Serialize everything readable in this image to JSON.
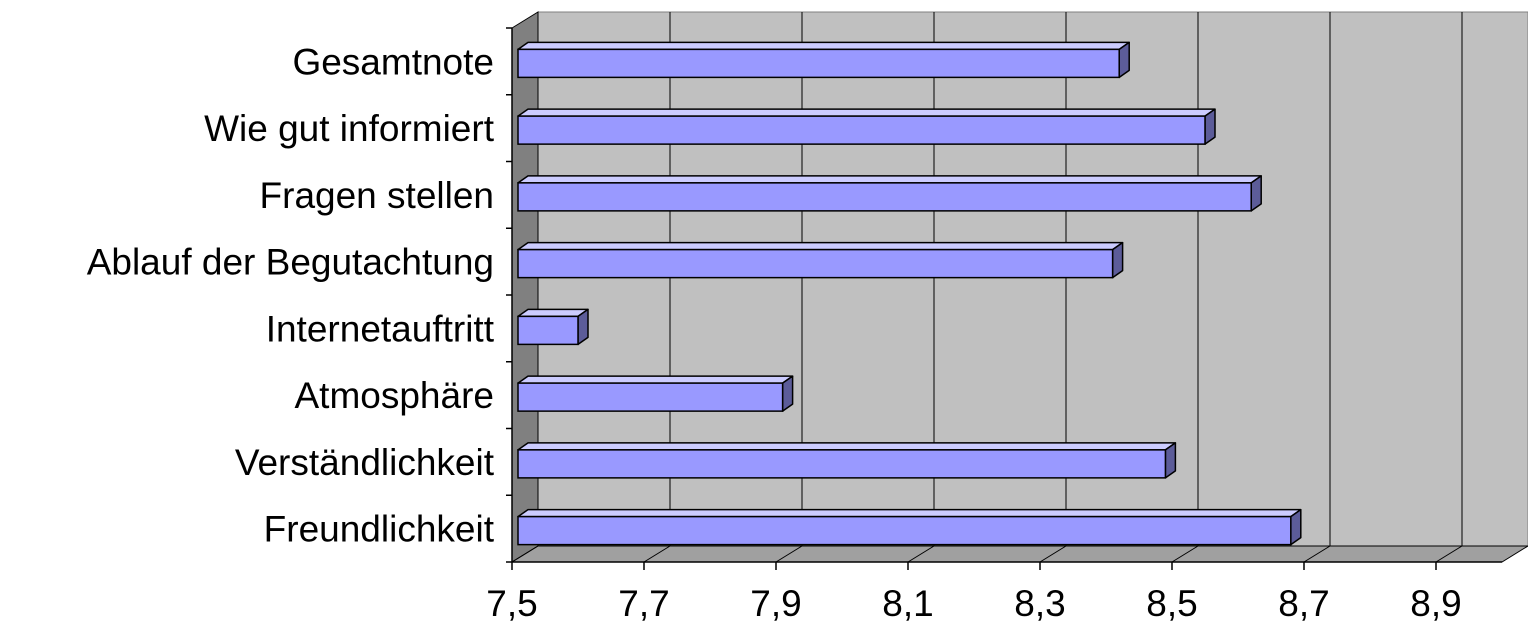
{
  "chart_data": {
    "type": "bar",
    "orientation": "horizontal",
    "style": "3d",
    "categories": [
      "Gesamtnote",
      "Wie gut informiert",
      "Fragen stellen",
      "Ablauf der Begutachtung",
      "Internetauftritt",
      "Atmosphäre",
      "Verständlichkeit",
      "Freundlichkeit"
    ],
    "values": [
      8.42,
      8.55,
      8.62,
      8.41,
      7.6,
      7.91,
      8.49,
      8.68
    ],
    "xlim": [
      7.5,
      9.0
    ],
    "ticks": [
      "7,5",
      "7,7",
      "7,9",
      "8,1",
      "8,3",
      "8,5",
      "8,7",
      "8,9"
    ],
    "tick_values": [
      7.5,
      7.7,
      7.9,
      8.1,
      8.3,
      8.5,
      8.7,
      8.9
    ],
    "grid": true,
    "legend": "none",
    "colors": {
      "bar_front": "#9999ff",
      "bar_top": "#ccccff",
      "bar_side": "#5c5c99",
      "plot_back": "#c0c0c0",
      "plot_floor": "#a0a0a0",
      "plot_wall": "#808080",
      "gridline": "#000000"
    }
  }
}
